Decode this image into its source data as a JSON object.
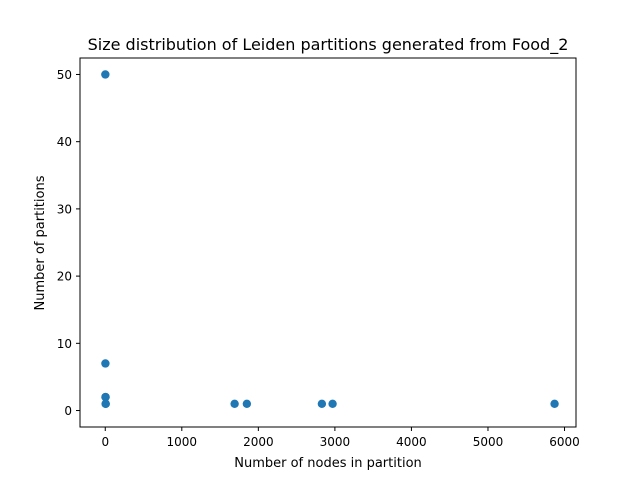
{
  "chart_data": {
    "type": "scatter",
    "title": "Size distribution of Leiden partitions generated from Food_2",
    "xlabel": "Number of nodes in partition",
    "ylabel": "Number of partitions",
    "xlim": [
      -330,
      6150
    ],
    "ylim": [
      -2.45,
      52.45
    ],
    "x_ticks": [
      0,
      1000,
      2000,
      3000,
      4000,
      5000,
      6000
    ],
    "y_ticks": [
      0,
      10,
      20,
      30,
      40,
      50
    ],
    "grid": false,
    "legend": "none",
    "marker_color": "#1f77b4",
    "points": [
      {
        "x": 1,
        "y": 50
      },
      {
        "x": 2,
        "y": 7
      },
      {
        "x": 3,
        "y": 2
      },
      {
        "x": 4,
        "y": 2
      },
      {
        "x": 5,
        "y": 1
      },
      {
        "x": 6,
        "y": 1
      },
      {
        "x": 1690,
        "y": 1
      },
      {
        "x": 1850,
        "y": 1
      },
      {
        "x": 2830,
        "y": 1
      },
      {
        "x": 2970,
        "y": 1
      },
      {
        "x": 5870,
        "y": 1
      }
    ]
  }
}
